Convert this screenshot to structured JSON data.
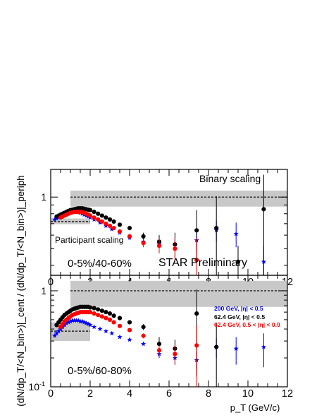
{
  "figure": {
    "ylabel": "(dN/dp_T/<N_bin>)|_cent / (dN/dp_T/<N_bin>)|_periph",
    "xlabel": "p_T (GeV/c)",
    "watermark": "STAR Preliminary"
  },
  "chart_data": [
    {
      "type": "scatter",
      "panel": "top",
      "title": "",
      "centrality_label": "0-5%/40-60%",
      "xlim": [
        0,
        12
      ],
      "ylim": [
        0.35,
        1.45
      ],
      "yscale": "log",
      "xticks": [
        "0",
        "2",
        "4",
        "6",
        "8",
        "10",
        "12"
      ],
      "yticks": [
        "1"
      ],
      "grid": false,
      "bands": [
        {
          "name": "Binary scaling",
          "x": [
            1.0,
            12.0
          ],
          "y_center": 1.0,
          "y_low": 0.88,
          "y_high": 1.09
        },
        {
          "name": "Participant scaling",
          "x": [
            0.0,
            2.0
          ],
          "y_center": 0.72,
          "y_low": 0.695,
          "y_high": 0.75
        }
      ],
      "series": [
        {
          "name": "200 GeV, |η| < 0.5",
          "color": "#0000ff",
          "marker": "star",
          "x": [
            0.2,
            0.3,
            0.4,
            0.5,
            0.6,
            0.7,
            0.8,
            0.9,
            1.0,
            1.1,
            1.2,
            1.3,
            1.4,
            1.5,
            1.6,
            1.7,
            1.8,
            1.9,
            2.0,
            2.2,
            2.5,
            2.8,
            3.1,
            3.5,
            4.0,
            4.7,
            5.5,
            6.3,
            7.4,
            8.4,
            9.4,
            10.8
          ],
          "y": [
            0.74,
            0.75,
            0.76,
            0.77,
            0.78,
            0.79,
            0.8,
            0.81,
            0.815,
            0.82,
            0.82,
            0.82,
            0.815,
            0.81,
            0.8,
            0.79,
            0.78,
            0.77,
            0.76,
            0.74,
            0.71,
            0.68,
            0.65,
            0.62,
            0.58,
            0.55,
            0.53,
            0.53,
            0.56,
            0.64,
            0.61,
            0.42
          ],
          "err": [
            0.01,
            0.01,
            0.01,
            0.01,
            0.01,
            0.01,
            0.01,
            0.01,
            0.01,
            0.01,
            0.01,
            0.01,
            0.01,
            0.01,
            0.01,
            0.01,
            0.01,
            0.01,
            0.01,
            0.01,
            0.01,
            0.01,
            0.01,
            0.01,
            0.015,
            0.02,
            0.03,
            0.04,
            0.08,
            0.09,
            0.1,
            0.1
          ]
        },
        {
          "name": "62.4 GeV, |η| < 0.5",
          "color": "#000000",
          "marker": "circle",
          "x": [
            0.3,
            0.4,
            0.5,
            0.6,
            0.7,
            0.8,
            0.9,
            1.0,
            1.1,
            1.2,
            1.3,
            1.4,
            1.5,
            1.6,
            1.7,
            1.8,
            1.9,
            2.0,
            2.2,
            2.4,
            2.6,
            2.8,
            3.0,
            3.2,
            3.5,
            4.0,
            4.7,
            5.5,
            6.3,
            7.4,
            8.4,
            9.5,
            10.8
          ],
          "y": [
            0.77,
            0.78,
            0.79,
            0.8,
            0.81,
            0.82,
            0.83,
            0.84,
            0.845,
            0.85,
            0.855,
            0.86,
            0.86,
            0.86,
            0.855,
            0.85,
            0.845,
            0.84,
            0.82,
            0.8,
            0.78,
            0.76,
            0.74,
            0.72,
            0.69,
            0.66,
            0.59,
            0.55,
            0.53,
            0.64,
            0.66,
            0.42,
            0.85
          ],
          "err": [
            0.01,
            0.01,
            0.01,
            0.01,
            0.01,
            0.01,
            0.01,
            0.01,
            0.01,
            0.01,
            0.01,
            0.01,
            0.01,
            0.01,
            0.01,
            0.01,
            0.01,
            0.01,
            0.01,
            0.01,
            0.01,
            0.01,
            0.01,
            0.01,
            0.01,
            0.02,
            0.03,
            0.05,
            0.09,
            0.2,
            0.35,
            0.1,
            0.5
          ]
        },
        {
          "name": "62.4 GeV, 0.5 < |η| < 0.9",
          "color": "#ff0000",
          "marker": "circle",
          "x": [
            0.5,
            0.6,
            0.7,
            0.8,
            0.9,
            1.0,
            1.1,
            1.2,
            1.3,
            1.4,
            1.5,
            1.6,
            1.7,
            1.8,
            1.9,
            2.0,
            2.2,
            2.4,
            2.6,
            2.8,
            3.0,
            3.2,
            3.5,
            4.0,
            4.7,
            5.5,
            6.3,
            7.4
          ],
          "y": [
            0.76,
            0.77,
            0.78,
            0.79,
            0.8,
            0.81,
            0.815,
            0.82,
            0.82,
            0.82,
            0.82,
            0.815,
            0.81,
            0.8,
            0.79,
            0.78,
            0.76,
            0.74,
            0.72,
            0.7,
            0.68,
            0.66,
            0.63,
            0.59,
            0.54,
            0.52,
            0.5,
            0.43
          ],
          "err": [
            0.01,
            0.01,
            0.01,
            0.01,
            0.01,
            0.01,
            0.01,
            0.01,
            0.01,
            0.01,
            0.01,
            0.01,
            0.01,
            0.01,
            0.01,
            0.01,
            0.01,
            0.01,
            0.01,
            0.01,
            0.01,
            0.01,
            0.01,
            0.02,
            0.03,
            0.05,
            0.08,
            0.15
          ]
        }
      ],
      "annotations": [
        "Binary scaling",
        "Participant scaling"
      ]
    },
    {
      "type": "scatter",
      "panel": "bottom",
      "title": "",
      "centrality_label": "0-5%/60-80%",
      "xlim": [
        0,
        12
      ],
      "ylim": [
        0.1,
        1.45
      ],
      "yscale": "log",
      "xticks": [
        "0",
        "2",
        "4",
        "6",
        "8",
        "10",
        "12"
      ],
      "yticks": [
        "1",
        "10^-1"
      ],
      "grid": false,
      "bands": [
        {
          "name": "Binary scaling",
          "x": [
            1.0,
            12.0
          ],
          "y_center": 1.0,
          "y_low": 0.68,
          "y_high": 1.27
        },
        {
          "name": "Participant scaling",
          "x": [
            0.0,
            2.0
          ],
          "y_center": 0.38,
          "y_low": 0.3,
          "y_high": 0.47
        }
      ],
      "series": [
        {
          "name": "200 GeV, |η| < 0.5",
          "color": "#0000ff",
          "marker": "star",
          "x": [
            0.2,
            0.3,
            0.4,
            0.5,
            0.6,
            0.7,
            0.8,
            0.9,
            1.0,
            1.1,
            1.2,
            1.3,
            1.4,
            1.5,
            1.6,
            1.7,
            1.8,
            1.9,
            2.0,
            2.2,
            2.5,
            2.8,
            3.1,
            3.5,
            4.0,
            4.7,
            5.5,
            6.3,
            7.4,
            8.4,
            9.4,
            10.8
          ],
          "y": [
            0.34,
            0.36,
            0.38,
            0.4,
            0.42,
            0.44,
            0.46,
            0.47,
            0.48,
            0.49,
            0.49,
            0.49,
            0.49,
            0.48,
            0.48,
            0.47,
            0.46,
            0.45,
            0.44,
            0.42,
            0.4,
            0.38,
            0.36,
            0.33,
            0.31,
            0.28,
            0.22,
            0.2,
            0.19,
            0.26,
            0.25,
            0.26
          ],
          "err": [
            0.005,
            0.005,
            0.005,
            0.005,
            0.005,
            0.005,
            0.005,
            0.005,
            0.005,
            0.005,
            0.005,
            0.005,
            0.005,
            0.005,
            0.005,
            0.005,
            0.005,
            0.005,
            0.005,
            0.005,
            0.005,
            0.005,
            0.005,
            0.005,
            0.01,
            0.01,
            0.02,
            0.03,
            0.04,
            0.06,
            0.08,
            0.1
          ]
        },
        {
          "name": "62.4 GeV, |η| < 0.5",
          "color": "#000000",
          "marker": "circle",
          "x": [
            0.3,
            0.4,
            0.5,
            0.6,
            0.7,
            0.8,
            0.9,
            1.0,
            1.1,
            1.2,
            1.3,
            1.4,
            1.5,
            1.6,
            1.7,
            1.8,
            1.9,
            2.0,
            2.2,
            2.4,
            2.6,
            2.8,
            3.0,
            3.2,
            3.5,
            4.0,
            4.7,
            5.5,
            6.3,
            7.4,
            8.4
          ],
          "y": [
            0.44,
            0.47,
            0.5,
            0.53,
            0.56,
            0.58,
            0.6,
            0.62,
            0.64,
            0.65,
            0.66,
            0.67,
            0.68,
            0.68,
            0.68,
            0.68,
            0.68,
            0.67,
            0.66,
            0.64,
            0.62,
            0.6,
            0.58,
            0.55,
            0.52,
            0.47,
            0.42,
            0.28,
            0.25,
            0.58,
            0.26
          ],
          "err": [
            0.005,
            0.005,
            0.005,
            0.005,
            0.005,
            0.005,
            0.005,
            0.005,
            0.005,
            0.005,
            0.005,
            0.005,
            0.005,
            0.005,
            0.005,
            0.005,
            0.005,
            0.005,
            0.005,
            0.005,
            0.005,
            0.005,
            0.005,
            0.005,
            0.01,
            0.02,
            0.03,
            0.05,
            0.06,
            0.45,
            0.2
          ]
        },
        {
          "name": "62.4 GeV, 0.5 < |η| < 0.9",
          "color": "#ff0000",
          "marker": "circle",
          "x": [
            0.5,
            0.6,
            0.7,
            0.8,
            0.9,
            1.0,
            1.1,
            1.2,
            1.3,
            1.4,
            1.5,
            1.6,
            1.7,
            1.8,
            1.9,
            2.0,
            2.2,
            2.4,
            2.6,
            2.8,
            3.0,
            3.2,
            3.5,
            4.0,
            4.7,
            5.5,
            6.3,
            7.4
          ],
          "y": [
            0.42,
            0.45,
            0.48,
            0.5,
            0.52,
            0.54,
            0.56,
            0.57,
            0.58,
            0.59,
            0.6,
            0.6,
            0.6,
            0.6,
            0.6,
            0.6,
            0.58,
            0.56,
            0.54,
            0.52,
            0.5,
            0.47,
            0.43,
            0.39,
            0.34,
            0.24,
            0.22,
            0.27
          ],
          "err": [
            0.005,
            0.005,
            0.005,
            0.005,
            0.005,
            0.005,
            0.005,
            0.005,
            0.005,
            0.005,
            0.005,
            0.005,
            0.005,
            0.005,
            0.005,
            0.005,
            0.005,
            0.005,
            0.005,
            0.005,
            0.005,
            0.005,
            0.01,
            0.01,
            0.02,
            0.03,
            0.05,
            0.17
          ]
        }
      ],
      "legend": {
        "placement": "top-right",
        "entries": [
          {
            "text": "200 GeV, |η| < 0.5",
            "color": "#0000ff"
          },
          {
            "text": "62.4 GeV, |η| < 0.5",
            "color": "#000000"
          },
          {
            "text": "62.4 GeV, 0.5 < |η| < 0.9",
            "color": "#ff0000"
          }
        ]
      }
    }
  ]
}
